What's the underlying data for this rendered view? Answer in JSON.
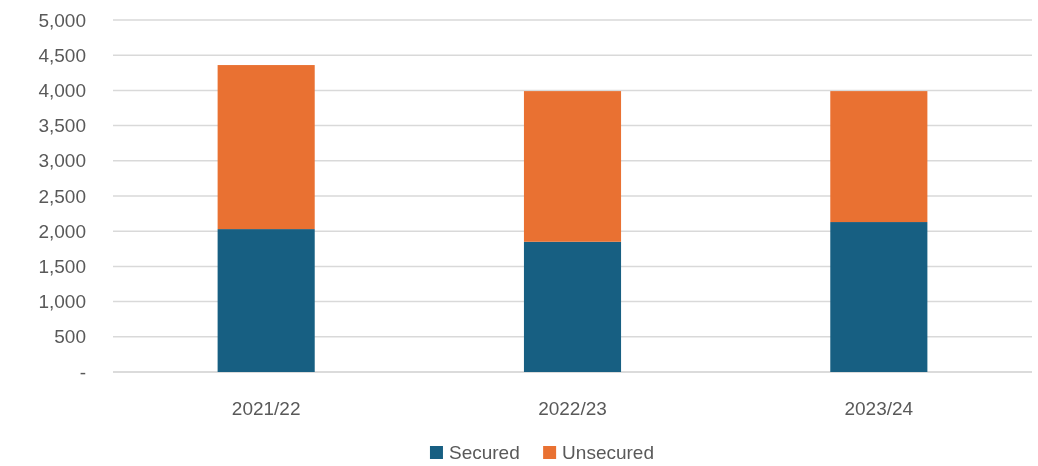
{
  "chart_data": {
    "type": "bar",
    "stacked": true,
    "categories": [
      "2021/22",
      "2022/23",
      "2023/24"
    ],
    "series": [
      {
        "name": "Secured",
        "color": "#175f82",
        "values": [
          2030,
          1850,
          2130
        ]
      },
      {
        "name": "Unsecured",
        "color": "#e97132",
        "values": [
          2330,
          2140,
          1860
        ]
      }
    ],
    "ylim": [
      0,
      5000
    ],
    "yticks": [
      {
        "value": 0,
        "label": "-"
      },
      500,
      {
        "value": 1000,
        "label": "1,000"
      },
      {
        "value": 1500,
        "label": "1,500"
      },
      {
        "value": 2000,
        "label": "2,000"
      },
      {
        "value": 2500,
        "label": "2,500"
      },
      {
        "value": 3000,
        "label": "3,000"
      },
      {
        "value": 3500,
        "label": "3,500"
      },
      {
        "value": 4000,
        "label": "4,000"
      },
      {
        "value": 4500,
        "label": "4,500"
      },
      {
        "value": 5000,
        "label": "5,000"
      }
    ],
    "grid": "y",
    "legend": "bottom"
  }
}
